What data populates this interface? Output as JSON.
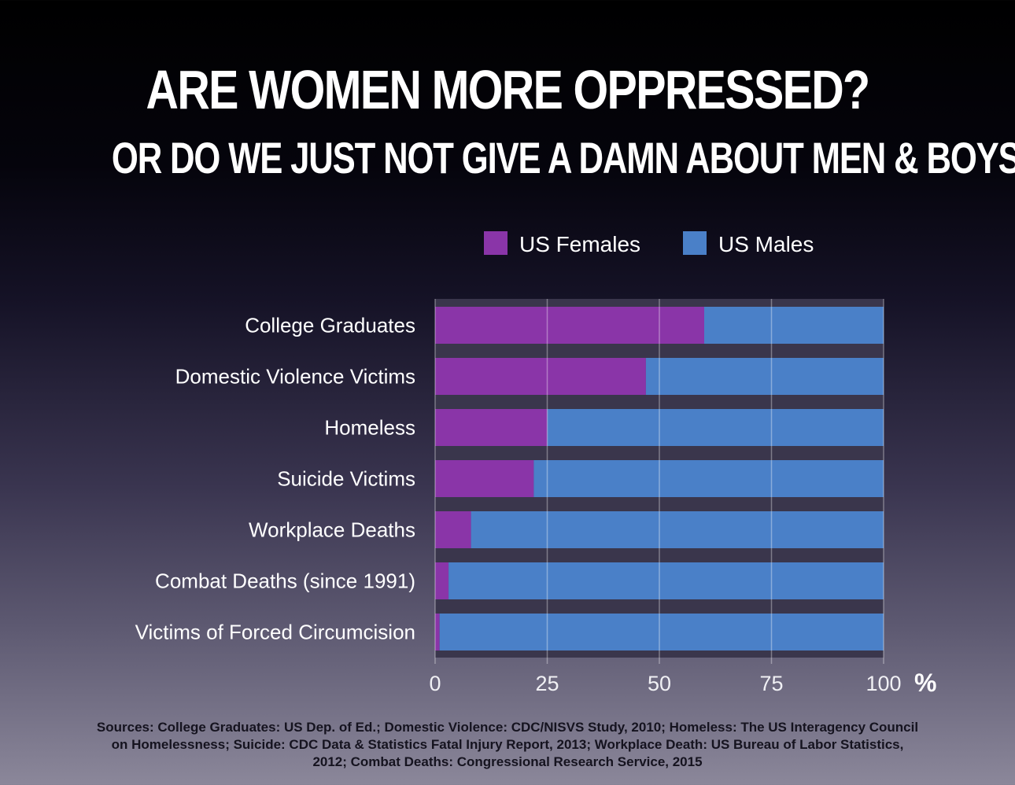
{
  "header": {
    "title": "ARE WOMEN MORE OPPRESSED?",
    "subtitle": "OR DO WE JUST NOT GIVE A DAMN ABOUT MEN & BOYS?"
  },
  "colors": {
    "female": "#8a35a8",
    "male": "#4a80c8",
    "gap": "#3a364c",
    "text": "#ffffff"
  },
  "chart_data": {
    "type": "bar",
    "orientation": "horizontal",
    "stacked": true,
    "categories": [
      "College Graduates",
      "Domestic Violence Victims",
      "Homeless",
      "Suicide Victims",
      "Workplace Deaths",
      "Combat Deaths (since 1991)",
      "Victims of Forced Circumcision"
    ],
    "series": [
      {
        "name": "US Females",
        "values": [
          60,
          47,
          25,
          22,
          8,
          3,
          1
        ]
      },
      {
        "name": "US Males",
        "values": [
          40,
          53,
          75,
          78,
          92,
          97,
          99
        ]
      }
    ],
    "xlim": [
      0,
      100
    ],
    "xticks": [
      "0",
      "25",
      "50",
      "75",
      "100"
    ],
    "x_unit": "%",
    "grid": true,
    "legend_position": "top"
  },
  "footer": {
    "sources": "Sources: College Graduates: US Dep. of Ed.; Domestic Violence: CDC/NISVS Study, 2010; Homeless: The US Interagency Council on Homelessness; Suicide: CDC Data & Statistics Fatal Injury Report, 2013; Workplace Death: US Bureau of Labor Statistics, 2012; Combat Deaths: Congressional Research Service, 2015"
  }
}
